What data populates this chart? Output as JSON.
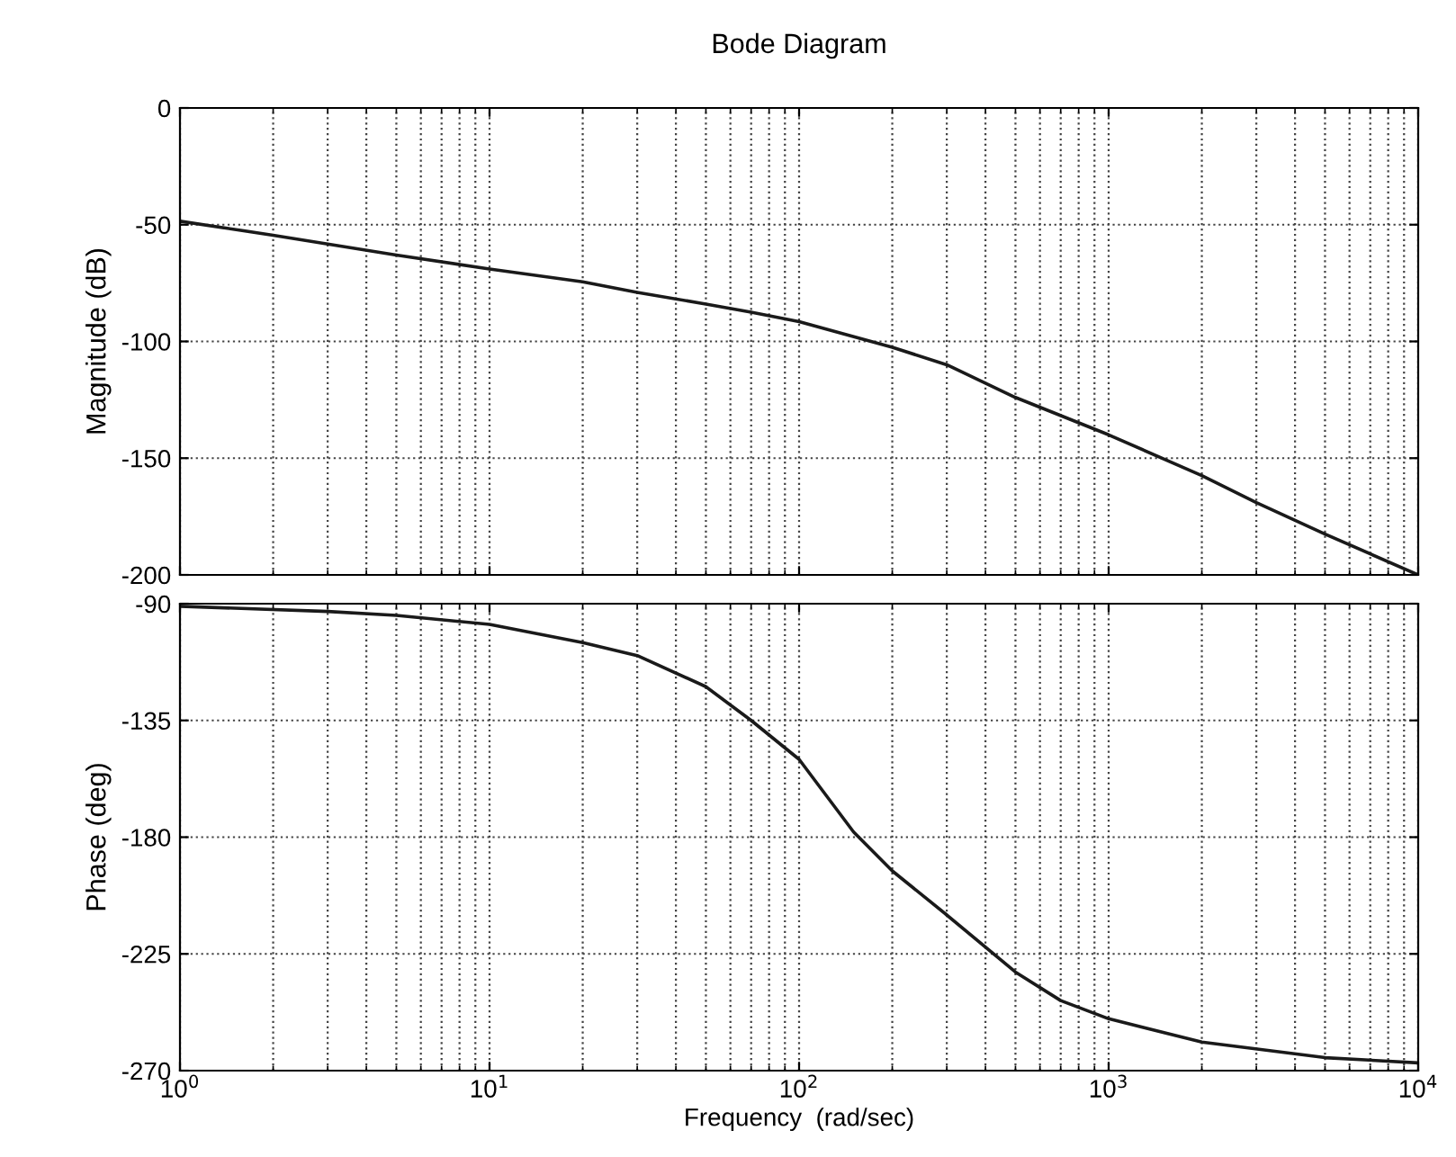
{
  "chart_data": [
    {
      "type": "line",
      "title": "Bode Diagram",
      "ylabel": "Magnitude (dB)",
      "log": "x",
      "grid": true,
      "tick_labels": "y",
      "line_style": "solid",
      "marker": "none",
      "xlim": [
        1,
        10000
      ],
      "xticks": [
        {
          "value": 1,
          "label": null
        },
        {
          "value": 10,
          "label": null
        },
        {
          "value": 100,
          "label": null
        },
        {
          "value": 1000,
          "label": null
        },
        {
          "value": 10000,
          "label": null
        }
      ],
      "ylim": [
        -200,
        0
      ],
      "yticks": [
        -200,
        -150,
        -100,
        -50,
        0
      ],
      "series": [
        {
          "color": "#1a1a1a",
          "x": [
            1,
            2,
            5,
            10,
            20,
            30,
            50,
            70,
            100,
            200,
            300,
            500,
            1000,
            2000,
            3000,
            5000,
            10000
          ],
          "values": [
            -48.5,
            -54.5,
            -63,
            -69,
            -74.5,
            -79,
            -84,
            -87.5,
            -91.5,
            -102.5,
            -110,
            -124,
            -140,
            -157.5,
            -169,
            -182.5,
            -200
          ]
        }
      ]
    },
    {
      "type": "line",
      "xlabel": "Frequency  (rad/sec)",
      "ylabel": "Phase (deg)",
      "log": "x",
      "grid": true,
      "line_style": "solid",
      "marker": "none",
      "xlim": [
        1,
        10000
      ],
      "xticks": [
        {
          "value": 1,
          "label": "10$^{0}$"
        },
        {
          "value": 10,
          "label": "10$^{1}$"
        },
        {
          "value": 100,
          "label": "10$^{2}$"
        },
        {
          "value": 1000,
          "label": "10$^{3}$"
        },
        {
          "value": 10000,
          "label": "10$^{4}$"
        }
      ],
      "ylim": [
        -270,
        -90
      ],
      "yticks": [
        -270,
        -225,
        -180,
        -135,
        -90
      ],
      "series": [
        {
          "color": "#1a1a1a",
          "x": [
            1,
            3,
            5,
            10,
            20,
            30,
            50,
            70,
            100,
            150,
            200,
            300,
            500,
            700,
            1000,
            2000,
            5000,
            10000
          ],
          "values": [
            -91,
            -93,
            -94.5,
            -98,
            -105,
            -110,
            -122,
            -135,
            -150,
            -178,
            -193,
            -210,
            -232,
            -243,
            -250,
            -259,
            -265,
            -267
          ]
        }
      ]
    }
  ]
}
